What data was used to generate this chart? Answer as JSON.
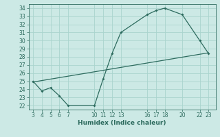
{
  "xlabel": "Humidex (Indice chaleur)",
  "bg_color": "#cce9e5",
  "line_color": "#2d6b5e",
  "grid_color": "#aad4ce",
  "curve1_x": [
    3,
    4,
    5,
    6,
    7,
    10,
    11,
    12,
    13,
    16,
    17,
    18,
    20,
    22,
    23
  ],
  "curve1_y": [
    25.0,
    23.8,
    24.2,
    23.2,
    22.0,
    22.0,
    25.3,
    28.4,
    31.0,
    33.2,
    33.7,
    34.0,
    33.2,
    30.0,
    28.4
  ],
  "curve2_x": [
    3,
    23
  ],
  "curve2_y": [
    24.9,
    28.5
  ],
  "xlim": [
    2.5,
    23.8
  ],
  "ylim": [
    21.5,
    34.5
  ],
  "xticks": [
    3,
    4,
    5,
    6,
    7,
    10,
    11,
    12,
    13,
    16,
    17,
    18,
    20,
    22,
    23
  ],
  "yticks": [
    22,
    23,
    24,
    25,
    26,
    27,
    28,
    29,
    30,
    31,
    32,
    33,
    34
  ],
  "tick_fontsize": 5.5,
  "xlabel_fontsize": 6.5
}
